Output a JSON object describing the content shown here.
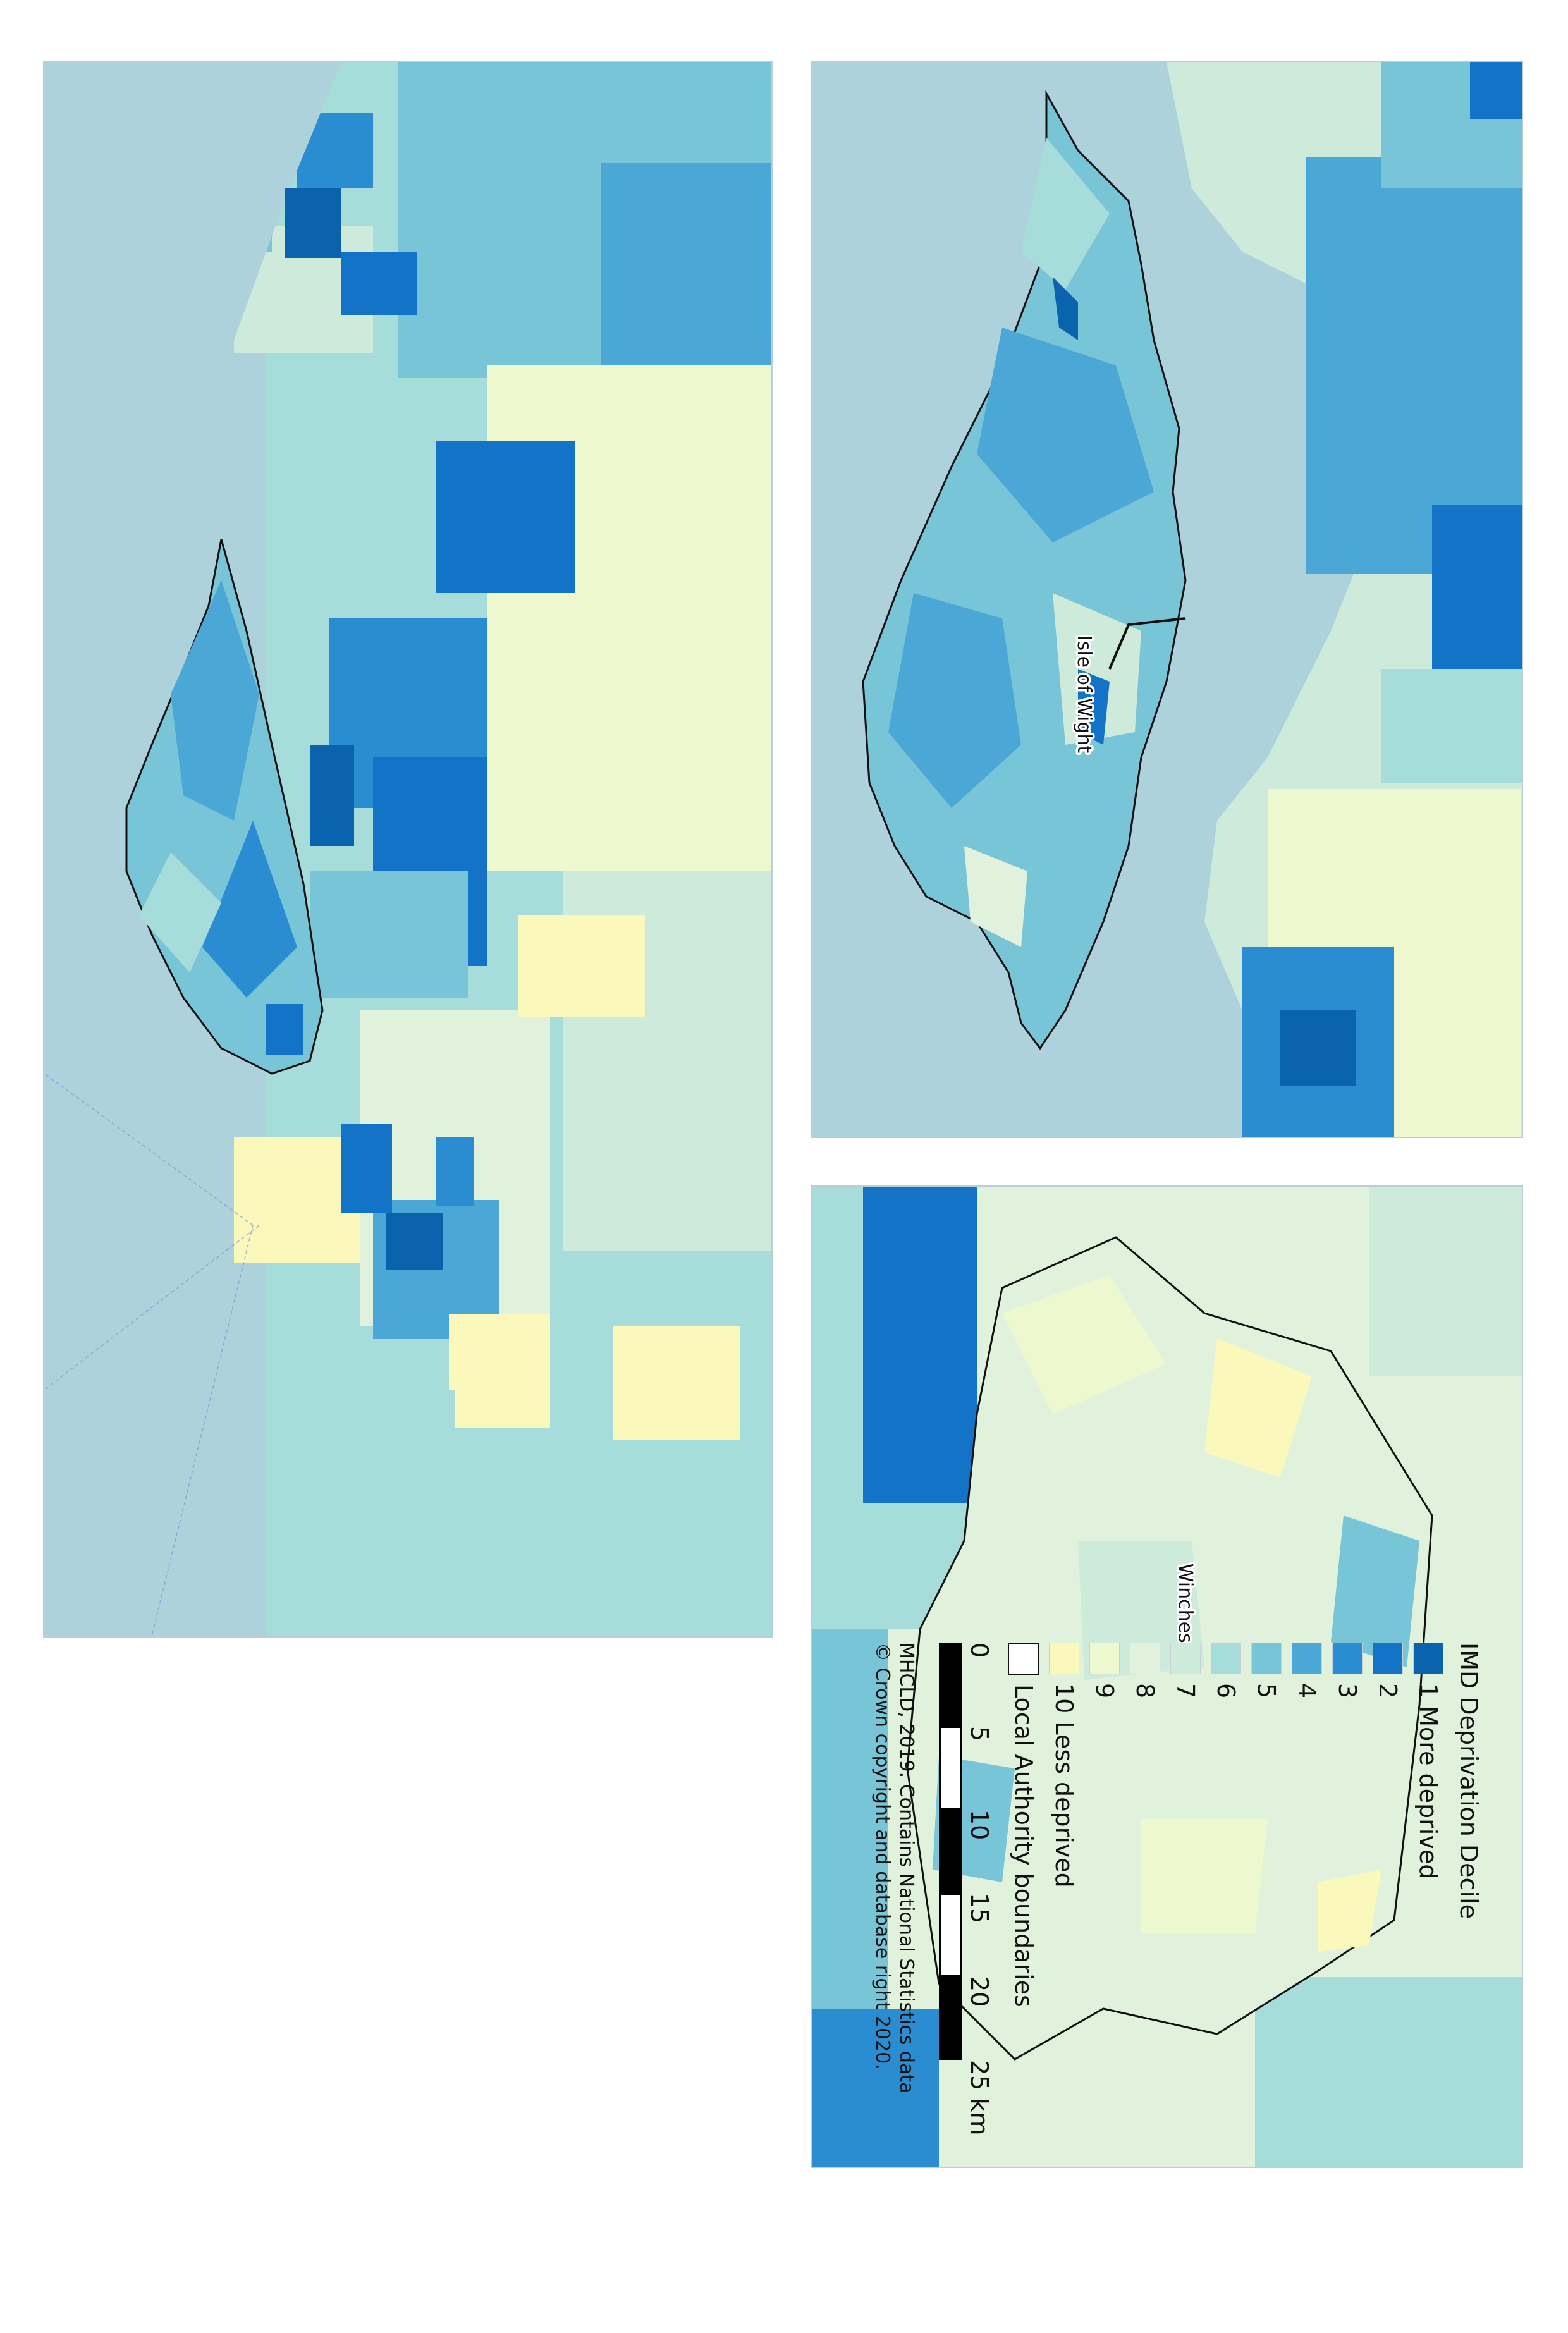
{
  "maps": {
    "isle_of_wight": {
      "label": "Isle of Wight"
    },
    "winchester": {
      "label": "Winchester"
    }
  },
  "legend": {
    "title": "IMD Deprivation Decile",
    "items": [
      {
        "label": "1 More deprived",
        "color": "#0a63ad"
      },
      {
        "label": "2",
        "color": "#1373c7"
      },
      {
        "label": "3",
        "color": "#2a8dd1"
      },
      {
        "label": "4",
        "color": "#4aa7d6"
      },
      {
        "label": "5",
        "color": "#79c5d8"
      },
      {
        "label": "6",
        "color": "#a6dcd9"
      },
      {
        "label": "7",
        "color": "#cdeadb"
      },
      {
        "label": "8",
        "color": "#e1f2dc"
      },
      {
        "label": "9",
        "color": "#eef8cf"
      },
      {
        "label": "10 Less deprived",
        "color": "#fbf8bb"
      }
    ],
    "boundary_label": "Local Authority boundaries"
  },
  "scale": {
    "ticks": [
      "0",
      "5",
      "10",
      "15",
      "20",
      "25 km"
    ]
  },
  "credits": {
    "line1": "MHCLD, 2019. Contains National Statistics data",
    "line2": "© Crown copyright and database right 2020."
  },
  "colors": {
    "sea": "#aed2dc",
    "boundary": "#111111"
  }
}
